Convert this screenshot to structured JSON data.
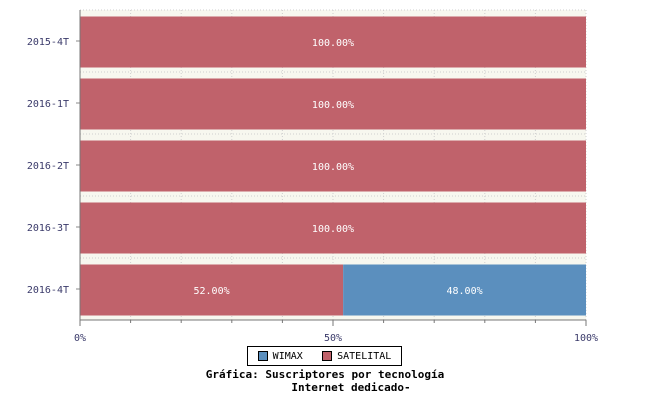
{
  "chart_data": {
    "type": "bar",
    "orientation": "horizontal",
    "stacked": true,
    "percent": true,
    "categories": [
      "2015-4T",
      "2016-1T",
      "2016-2T",
      "2016-3T",
      "2016-4T"
    ],
    "series": [
      {
        "name": "SATELITAL",
        "color": "#c0626b",
        "values": [
          100,
          100,
          100,
          100,
          52
        ],
        "labels": [
          "100.00%",
          "100.00%",
          "100.00%",
          "100.00%",
          "52.00%"
        ]
      },
      {
        "name": "WIMAX",
        "color": "#5b8fbe",
        "values": [
          0,
          0,
          0,
          0,
          48
        ],
        "labels": [
          "",
          "",
          "",
          "",
          "48.00%"
        ]
      }
    ],
    "x_ticks": [
      "0%",
      "50%",
      "100%"
    ],
    "xlim": [
      0,
      100
    ],
    "grid": true,
    "legend": {
      "position": "bottom-center",
      "items": [
        {
          "name": "WIMAX",
          "color": "#5b8fbe"
        },
        {
          "name": "SATELITAL",
          "color": "#c0626b"
        }
      ]
    },
    "caption": {
      "line1": "Gráfica: Suscriptores por tecnología",
      "line2": "Internet dedicado-"
    }
  }
}
